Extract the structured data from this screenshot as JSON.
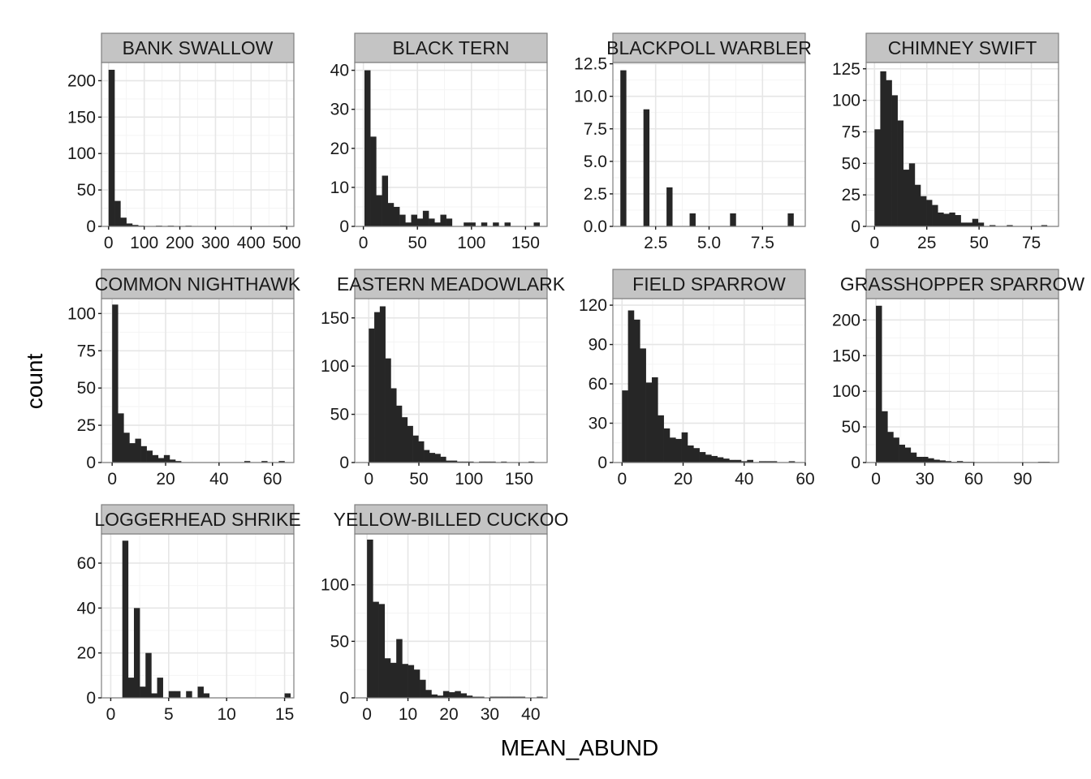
{
  "chart_data": {
    "type": "bar",
    "subtype": "faceted-histogram",
    "xlabel": "MEAN_ABUND",
    "ylabel": "count",
    "bar_color": "#262626",
    "strip_color": "#c4c4c4",
    "grid": true,
    "facets": [
      {
        "title": "BANK SWALLOW",
        "xlim": [
          -20,
          520
        ],
        "ylim": [
          0,
          225
        ],
        "xticks": [
          0,
          100,
          200,
          300,
          400,
          500
        ],
        "xtick_labels": [
          "0",
          "100",
          "200",
          "300",
          "400",
          "500"
        ],
        "yticks": [
          0,
          50,
          100,
          150,
          200
        ],
        "ytick_labels": [
          "0",
          "50",
          "100",
          "150",
          "200"
        ],
        "bin_start": 0,
        "bin_width": 16.6,
        "values": [
          215,
          35,
          12,
          4,
          2,
          1,
          0,
          0,
          1,
          0,
          1,
          0,
          0,
          1,
          0,
          0,
          0,
          0,
          0,
          0,
          0,
          0,
          0,
          0,
          0,
          0,
          0,
          0,
          0,
          1
        ]
      },
      {
        "title": "BLACK TERN",
        "xlim": [
          -8,
          170
        ],
        "ylim": [
          0,
          42
        ],
        "xticks": [
          0,
          50,
          100,
          150
        ],
        "xtick_labels": [
          "0",
          "50",
          "100",
          "150"
        ],
        "yticks": [
          0,
          10,
          20,
          30,
          40
        ],
        "ytick_labels": [
          "0",
          "10",
          "20",
          "30",
          "40"
        ],
        "bin_start": 1,
        "bin_width": 5.4,
        "values": [
          40,
          23,
          8,
          13,
          6,
          5,
          3,
          1,
          3,
          2,
          4,
          2,
          1,
          3,
          2,
          0,
          0,
          1,
          1,
          0,
          1,
          0,
          1,
          0,
          1,
          0,
          0,
          0,
          0,
          1
        ]
      },
      {
        "title": "BLACKPOLL WARBLER",
        "xlim": [
          0.5,
          9.5
        ],
        "ylim": [
          0,
          12.6
        ],
        "xticks": [
          2.5,
          5.0,
          7.5
        ],
        "xtick_labels": [
          "2.5",
          "5.0",
          "7.5"
        ],
        "yticks": [
          0,
          2.5,
          5.0,
          7.5,
          10.0,
          12.5
        ],
        "ytick_labels": [
          "0.0",
          "2.5",
          "5.0",
          "7.5",
          "10.0",
          "12.5"
        ],
        "bin_start": 0.85,
        "bin_width": 0.27,
        "values": [
          12,
          0,
          0,
          0,
          9,
          0,
          0,
          0,
          3,
          0,
          0,
          0,
          1,
          0,
          0,
          0,
          0,
          0,
          0,
          1,
          0,
          0,
          0,
          0,
          0,
          0,
          0,
          0,
          0,
          1
        ]
      },
      {
        "title": "CHIMNEY SWIFT",
        "xlim": [
          -4,
          88
        ],
        "ylim": [
          0,
          130
        ],
        "xticks": [
          0,
          25,
          50,
          75
        ],
        "xtick_labels": [
          "0",
          "25",
          "50",
          "75"
        ],
        "yticks": [
          0,
          25,
          50,
          75,
          100,
          125
        ],
        "ytick_labels": [
          "0",
          "25",
          "50",
          "75",
          "100",
          "125"
        ],
        "bin_start": 0,
        "bin_width": 2.75,
        "values": [
          77,
          123,
          116,
          104,
          84,
          45,
          50,
          33,
          24,
          21,
          17,
          11,
          10,
          11,
          9,
          3,
          3,
          6,
          3,
          0,
          1,
          0,
          0,
          1,
          0,
          0,
          0,
          0,
          0,
          1
        ]
      },
      {
        "title": "COMMON NIGHTHAWK",
        "xlim": [
          -4,
          68
        ],
        "ylim": [
          0,
          110
        ],
        "xticks": [
          0,
          20,
          40,
          60
        ],
        "xtick_labels": [
          "0",
          "20",
          "40",
          "60"
        ],
        "yticks": [
          0,
          25,
          50,
          75,
          100
        ],
        "ytick_labels": [
          "0",
          "25",
          "50",
          "75",
          "100"
        ],
        "bin_start": 0,
        "bin_width": 2.15,
        "values": [
          106,
          33,
          20,
          13,
          16,
          11,
          8,
          5,
          3,
          5,
          2,
          1,
          0,
          0,
          0,
          0,
          0,
          0,
          0,
          0,
          0,
          0,
          0,
          1,
          0,
          0,
          1,
          0,
          0,
          1
        ]
      },
      {
        "title": "EASTERN MEADOWLARK",
        "xlim": [
          -14,
          178
        ],
        "ylim": [
          0,
          170
        ],
        "xticks": [
          0,
          50,
          100,
          150
        ],
        "xtick_labels": [
          "0",
          "50",
          "100",
          "150"
        ],
        "yticks": [
          0,
          50,
          100,
          150
        ],
        "ytick_labels": [
          "0",
          "50",
          "100",
          "150"
        ],
        "bin_start": 0,
        "bin_width": 5.5,
        "values": [
          139,
          156,
          162,
          108,
          77,
          59,
          47,
          38,
          28,
          22,
          13,
          10,
          9,
          6,
          2,
          2,
          1,
          1,
          1,
          0,
          1,
          1,
          1,
          0,
          1,
          0,
          0,
          0,
          0,
          1
        ]
      },
      {
        "title": "FIELD SPARROW",
        "xlim": [
          -3,
          60
        ],
        "ylim": [
          0,
          125
        ],
        "xticks": [
          0,
          20,
          40,
          60
        ],
        "xtick_labels": [
          "0",
          "20",
          "40",
          "60"
        ],
        "yticks": [
          0,
          30,
          60,
          90,
          120
        ],
        "ytick_labels": [
          "0",
          "30",
          "60",
          "90",
          "120"
        ],
        "bin_start": 0,
        "bin_width": 1.95,
        "values": [
          55,
          116,
          109,
          87,
          61,
          65,
          36,
          26,
          19,
          18,
          23,
          13,
          11,
          8,
          6,
          5,
          4,
          3,
          2,
          2,
          1,
          2,
          0,
          1,
          1,
          1,
          0,
          0,
          1,
          0
        ]
      },
      {
        "title": "GRASSHOPPER SPARROW",
        "xlim": [
          -6,
          112
        ],
        "ylim": [
          0,
          230
        ],
        "xticks": [
          0,
          30,
          60,
          90
        ],
        "xtick_labels": [
          "0",
          "30",
          "60",
          "90"
        ],
        "yticks": [
          0,
          50,
          100,
          150,
          200
        ],
        "ytick_labels": [
          "0",
          "50",
          "100",
          "150",
          "200"
        ],
        "bin_start": 0,
        "bin_width": 3.55,
        "values": [
          220,
          72,
          43,
          35,
          25,
          21,
          14,
          8,
          8,
          6,
          4,
          3,
          2,
          1,
          2,
          1,
          1,
          0,
          0,
          0,
          0,
          0,
          0,
          0,
          0,
          0,
          0,
          0,
          1,
          1
        ]
      },
      {
        "title": "LOGGERHEAD SHRIKE",
        "xlim": [
          -0.8,
          15.8
        ],
        "ylim": [
          0,
          73
        ],
        "xticks": [
          0,
          5,
          10,
          15
        ],
        "xtick_labels": [
          "0",
          "5",
          "10",
          "15"
        ],
        "yticks": [
          0,
          20,
          40,
          60
        ],
        "ytick_labels": [
          "0",
          "20",
          "40",
          "60"
        ],
        "bin_start": 1,
        "bin_width": 0.5,
        "values": [
          70,
          9,
          40,
          5,
          20,
          2,
          9,
          0,
          3,
          3,
          0,
          3,
          0,
          5,
          2,
          0,
          0,
          0,
          0,
          0,
          0,
          0,
          0,
          0,
          0,
          0,
          0,
          0,
          2,
          0
        ]
      },
      {
        "title": "YELLOW-BILLED CUCKOO",
        "xlim": [
          -3,
          44
        ],
        "ylim": [
          0,
          145
        ],
        "xticks": [
          0,
          10,
          20,
          30,
          40
        ],
        "xtick_labels": [
          "0",
          "10",
          "20",
          "30",
          "40"
        ],
        "yticks": [
          0,
          50,
          100
        ],
        "ytick_labels": [
          "0",
          "50",
          "100"
        ],
        "bin_start": 0,
        "bin_width": 1.43,
        "values": [
          140,
          85,
          83,
          35,
          31,
          52,
          30,
          29,
          25,
          16,
          7,
          3,
          2,
          6,
          5,
          6,
          4,
          2,
          1,
          1,
          0,
          1,
          1,
          1,
          1,
          1,
          1,
          0,
          0,
          1
        ]
      }
    ]
  }
}
